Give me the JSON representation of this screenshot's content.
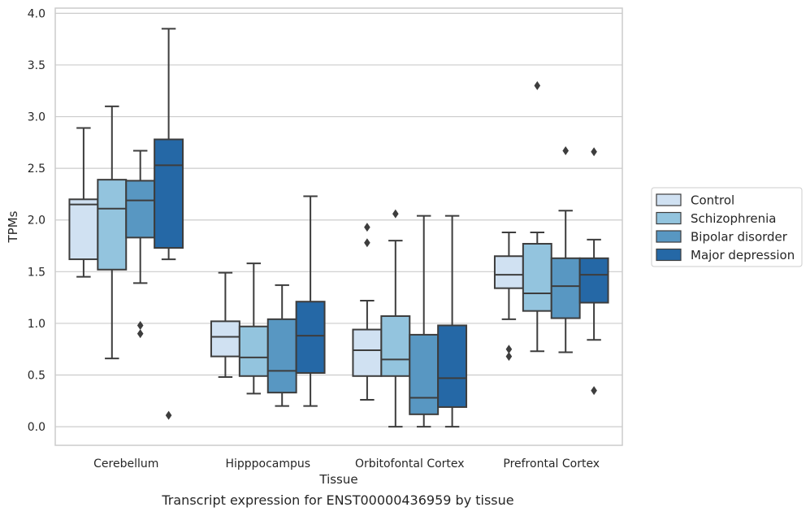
{
  "chart_data": {
    "type": "box",
    "title": "",
    "caption": "Transcript expression for ENST00000436959 by tissue",
    "xlabel": "Tissue",
    "ylabel": "TPMs",
    "ylim": [
      -0.18,
      4.05
    ],
    "yticks": [
      "0.0",
      "0.5",
      "1.0",
      "1.5",
      "2.0",
      "2.5",
      "3.0",
      "3.5",
      "4.0"
    ],
    "grid": "horizontal",
    "legend_position": "right",
    "categories": [
      "Cerebellum",
      "Hipppocampus",
      "Orbitofontal Cortex",
      "Prefrontal Cortex"
    ],
    "series": [
      {
        "name": "Control",
        "color": "#d0e1f2",
        "boxes": [
          {
            "whislo": 1.45,
            "q1": 1.62,
            "med": 2.15,
            "q3": 2.2,
            "whishi": 2.89,
            "fliers": []
          },
          {
            "whislo": 0.48,
            "q1": 0.68,
            "med": 0.87,
            "q3": 1.02,
            "whishi": 1.49,
            "fliers": []
          },
          {
            "whislo": 0.26,
            "q1": 0.49,
            "med": 0.74,
            "q3": 0.94,
            "whishi": 1.22,
            "fliers": [
              1.78,
              1.93
            ]
          },
          {
            "whislo": 1.04,
            "q1": 1.34,
            "med": 1.47,
            "q3": 1.65,
            "whishi": 1.88,
            "fliers": [
              0.68,
              0.75
            ]
          }
        ]
      },
      {
        "name": "Schizophrenia",
        "color": "#93c4de",
        "boxes": [
          {
            "whislo": 0.66,
            "q1": 1.52,
            "med": 2.11,
            "q3": 2.39,
            "whishi": 3.1,
            "fliers": []
          },
          {
            "whislo": 0.32,
            "q1": 0.49,
            "med": 0.67,
            "q3": 0.97,
            "whishi": 1.58,
            "fliers": []
          },
          {
            "whislo": 0.0,
            "q1": 0.49,
            "med": 0.65,
            "q3": 1.07,
            "whishi": 1.8,
            "fliers": [
              2.06
            ]
          },
          {
            "whislo": 0.73,
            "q1": 1.12,
            "med": 1.29,
            "q3": 1.77,
            "whishi": 1.88,
            "fliers": [
              3.3
            ]
          }
        ]
      },
      {
        "name": "Bipolar disorder",
        "color": "#5897c2",
        "boxes": [
          {
            "whislo": 1.39,
            "q1": 1.83,
            "med": 2.19,
            "q3": 2.38,
            "whishi": 2.67,
            "fliers": [
              0.9,
              0.98
            ]
          },
          {
            "whislo": 0.2,
            "q1": 0.33,
            "med": 0.54,
            "q3": 1.04,
            "whishi": 1.37,
            "fliers": []
          },
          {
            "whislo": 0.0,
            "q1": 0.12,
            "med": 0.28,
            "q3": 0.89,
            "whishi": 2.04,
            "fliers": []
          },
          {
            "whislo": 0.72,
            "q1": 1.05,
            "med": 1.36,
            "q3": 1.63,
            "whishi": 2.09,
            "fliers": [
              2.67
            ]
          }
        ]
      },
      {
        "name": "Major depression",
        "color": "#2568a6",
        "boxes": [
          {
            "whislo": 1.62,
            "q1": 1.73,
            "med": 2.53,
            "q3": 2.78,
            "whishi": 3.85,
            "fliers": [
              0.11
            ]
          },
          {
            "whislo": 0.2,
            "q1": 0.52,
            "med": 0.88,
            "q3": 1.21,
            "whishi": 2.23,
            "fliers": []
          },
          {
            "whislo": 0.0,
            "q1": 0.19,
            "med": 0.47,
            "q3": 0.98,
            "whishi": 2.04,
            "fliers": []
          },
          {
            "whislo": 0.84,
            "q1": 1.2,
            "med": 1.47,
            "q3": 1.63,
            "whishi": 1.81,
            "fliers": [
              0.35,
              2.66
            ]
          }
        ]
      }
    ]
  }
}
